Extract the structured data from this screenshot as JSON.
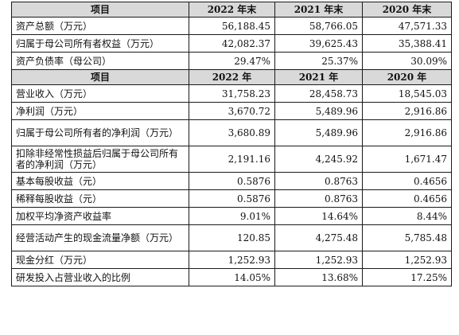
{
  "table": {
    "header1": [
      "项目",
      "2022 年末",
      "2021 年末",
      "2020 年末"
    ],
    "rows1": [
      {
        "label": "资产总额（万元）",
        "values": [
          "56,188.45",
          "58,766.05",
          "47,571.33"
        ]
      },
      {
        "label": "归属于母公司所有者权益（万元）",
        "values": [
          "42,082.37",
          "39,625.43",
          "35,388.41"
        ]
      },
      {
        "label": "资产负债率（母公司）",
        "values": [
          "29.47%",
          "25.37%",
          "30.09%"
        ]
      }
    ],
    "header2": [
      "项目",
      "2022 年",
      "2021 年",
      "2020 年"
    ],
    "rows2": [
      {
        "label": "营业收入（万元）",
        "values": [
          "31,758.23",
          "28,458.73",
          "18,545.03"
        ]
      },
      {
        "label": "净利润（万元）",
        "values": [
          "3,670.72",
          "5,489.96",
          "2,916.86"
        ]
      },
      {
        "label": "归属于母公司所有者的净利润（万元）",
        "values": [
          "3,680.89",
          "5,489.96",
          "2,916.86"
        ],
        "tall": true
      },
      {
        "label": "扣除非经常性损益后归属于母公司所有者的净利润（万元）",
        "values": [
          "2,191.16",
          "4,245.92",
          "1,671.47"
        ],
        "tall": true
      },
      {
        "label": "基本每股收益（元）",
        "values": [
          "0.5876",
          "0.8763",
          "0.4656"
        ]
      },
      {
        "label": "稀释每股收益（元）",
        "values": [
          "0.5876",
          "0.8763",
          "0.4656"
        ]
      },
      {
        "label": "加权平均净资产收益率",
        "values": [
          "9.01%",
          "14.64%",
          "8.44%"
        ]
      },
      {
        "label": "经营活动产生的现金流量净额（万元）",
        "values": [
          "120.85",
          "4,275.48",
          "5,785.48"
        ],
        "tall": true
      },
      {
        "label": "现金分红（万元）",
        "values": [
          "1,252.93",
          "1,252.93",
          "1,252.93"
        ]
      },
      {
        "label": "研发投入占营业收入的比例",
        "values": [
          "14.05%",
          "13.68%",
          "17.25%"
        ]
      }
    ]
  }
}
